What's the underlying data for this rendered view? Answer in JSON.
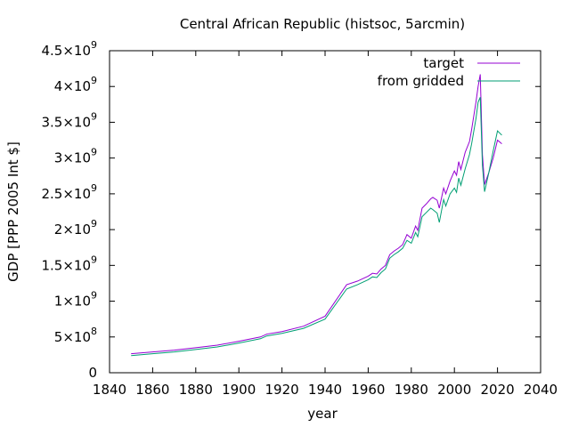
{
  "chart_data": {
    "type": "line",
    "title": "Central African Republic (histsoc, 5arcmin)",
    "xlabel": "year",
    "ylabel": "GDP [PPP 2005 Int $]",
    "xlim": [
      1840,
      2040
    ],
    "ylim": [
      0,
      4500000000
    ],
    "xticks": [
      1840,
      1860,
      1880,
      1900,
      1920,
      1940,
      1960,
      1980,
      2000,
      2020,
      2040
    ],
    "yticks": [
      {
        "value": 0,
        "mant": "0",
        "exp": ""
      },
      {
        "value": 500000000,
        "mant": "5×10",
        "exp": "8"
      },
      {
        "value": 1000000000,
        "mant": "1×10",
        "exp": "9"
      },
      {
        "value": 1500000000,
        "mant": "1.5×10",
        "exp": "9"
      },
      {
        "value": 2000000000,
        "mant": "2×10",
        "exp": "9"
      },
      {
        "value": 2500000000,
        "mant": "2.5×10",
        "exp": "9"
      },
      {
        "value": 3000000000,
        "mant": "3×10",
        "exp": "9"
      },
      {
        "value": 3500000000,
        "mant": "3.5×10",
        "exp": "9"
      },
      {
        "value": 4000000000,
        "mant": "4×10",
        "exp": "9"
      },
      {
        "value": 4500000000,
        "mant": "4.5×10",
        "exp": "9"
      }
    ],
    "grid": false,
    "legend_position": "top-right",
    "series": [
      {
        "name": "target",
        "color": "#9400d3",
        "points": [
          [
            1850,
            265000000
          ],
          [
            1860,
            290000000
          ],
          [
            1870,
            315000000
          ],
          [
            1880,
            350000000
          ],
          [
            1890,
            385000000
          ],
          [
            1900,
            440000000
          ],
          [
            1910,
            500000000
          ],
          [
            1913,
            540000000
          ],
          [
            1920,
            575000000
          ],
          [
            1930,
            650000000
          ],
          [
            1940,
            790000000
          ],
          [
            1950,
            1230000000
          ],
          [
            1955,
            1280000000
          ],
          [
            1960,
            1350000000
          ],
          [
            1962,
            1390000000
          ],
          [
            1964,
            1380000000
          ],
          [
            1966,
            1450000000
          ],
          [
            1968,
            1500000000
          ],
          [
            1970,
            1650000000
          ],
          [
            1972,
            1700000000
          ],
          [
            1974,
            1740000000
          ],
          [
            1976,
            1790000000
          ],
          [
            1978,
            1930000000
          ],
          [
            1980,
            1880000000
          ],
          [
            1982,
            2050000000
          ],
          [
            1983,
            1990000000
          ],
          [
            1985,
            2300000000
          ],
          [
            1987,
            2360000000
          ],
          [
            1989,
            2430000000
          ],
          [
            1990,
            2450000000
          ],
          [
            1992,
            2410000000
          ],
          [
            1993,
            2300000000
          ],
          [
            1995,
            2580000000
          ],
          [
            1996,
            2500000000
          ],
          [
            1998,
            2680000000
          ],
          [
            2000,
            2820000000
          ],
          [
            2001,
            2760000000
          ],
          [
            2002,
            2950000000
          ],
          [
            2003,
            2840000000
          ],
          [
            2005,
            3080000000
          ],
          [
            2007,
            3230000000
          ],
          [
            2008,
            3400000000
          ],
          [
            2010,
            3780000000
          ],
          [
            2011,
            4000000000
          ],
          [
            2012,
            4170000000
          ],
          [
            2013,
            3050000000
          ],
          [
            2014,
            2630000000
          ],
          [
            2016,
            2800000000
          ],
          [
            2018,
            3000000000
          ],
          [
            2020,
            3250000000
          ],
          [
            2022,
            3200000000
          ]
        ]
      },
      {
        "name": "from gridded",
        "color": "#009e73",
        "points": [
          [
            1850,
            240000000
          ],
          [
            1860,
            265000000
          ],
          [
            1870,
            290000000
          ],
          [
            1880,
            325000000
          ],
          [
            1890,
            360000000
          ],
          [
            1900,
            415000000
          ],
          [
            1910,
            475000000
          ],
          [
            1913,
            515000000
          ],
          [
            1920,
            550000000
          ],
          [
            1930,
            620000000
          ],
          [
            1940,
            750000000
          ],
          [
            1950,
            1170000000
          ],
          [
            1955,
            1230000000
          ],
          [
            1960,
            1300000000
          ],
          [
            1962,
            1340000000
          ],
          [
            1964,
            1330000000
          ],
          [
            1966,
            1400000000
          ],
          [
            1968,
            1450000000
          ],
          [
            1970,
            1600000000
          ],
          [
            1972,
            1650000000
          ],
          [
            1974,
            1690000000
          ],
          [
            1976,
            1740000000
          ],
          [
            1978,
            1850000000
          ],
          [
            1980,
            1810000000
          ],
          [
            1982,
            1960000000
          ],
          [
            1983,
            1900000000
          ],
          [
            1985,
            2180000000
          ],
          [
            1987,
            2240000000
          ],
          [
            1989,
            2300000000
          ],
          [
            1990,
            2280000000
          ],
          [
            1992,
            2230000000
          ],
          [
            1993,
            2100000000
          ],
          [
            1995,
            2420000000
          ],
          [
            1996,
            2330000000
          ],
          [
            1998,
            2500000000
          ],
          [
            2000,
            2580000000
          ],
          [
            2001,
            2520000000
          ],
          [
            2002,
            2720000000
          ],
          [
            2003,
            2620000000
          ],
          [
            2005,
            2850000000
          ],
          [
            2007,
            3050000000
          ],
          [
            2008,
            3200000000
          ],
          [
            2010,
            3550000000
          ],
          [
            2011,
            3780000000
          ],
          [
            2012,
            3850000000
          ],
          [
            2013,
            2900000000
          ],
          [
            2014,
            2530000000
          ],
          [
            2016,
            2800000000
          ],
          [
            2018,
            3100000000
          ],
          [
            2020,
            3380000000
          ],
          [
            2022,
            3320000000
          ]
        ]
      }
    ]
  }
}
